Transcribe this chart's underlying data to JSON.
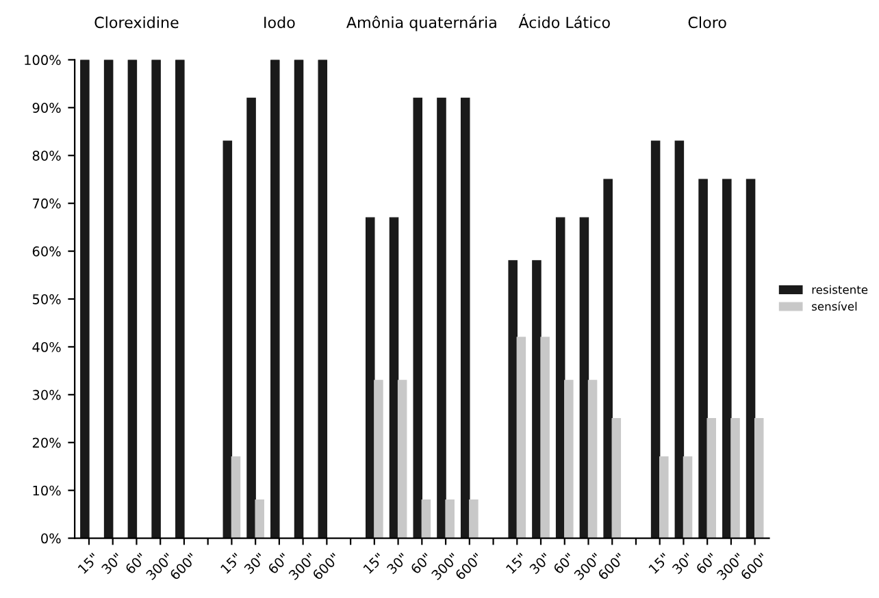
{
  "chart_data": {
    "type": "bar",
    "categories": [
      "15\"",
      "30\"",
      "60\"",
      "300\"",
      "600\"",
      null,
      "15\"",
      "30\"",
      "60\"",
      "300\"",
      "600\"",
      null,
      "15\"",
      "30\"",
      "60\"",
      "300\"",
      "600\"",
      null,
      "15\"",
      "30\"",
      "60\"",
      "300\"",
      "600\"",
      null,
      "15\"",
      "30\"",
      "60\"",
      "300\"",
      "600\""
    ],
    "series": [
      {
        "name": "resistente",
        "color": "#1a1a1a",
        "values": [
          100,
          100,
          100,
          100,
          100,
          null,
          83,
          92,
          100,
          100,
          100,
          null,
          67,
          67,
          92,
          92,
          92,
          null,
          58,
          58,
          67,
          67,
          75,
          null,
          83,
          83,
          75,
          75,
          75
        ]
      },
      {
        "name": "sensível",
        "color": "#c8c8c8",
        "values": [
          0,
          0,
          0,
          0,
          0,
          null,
          17,
          8,
          0,
          0,
          0,
          null,
          33,
          33,
          8,
          8,
          8,
          null,
          42,
          42,
          33,
          33,
          25,
          null,
          17,
          17,
          25,
          25,
          25
        ]
      }
    ],
    "annotations": [
      "Clorexidine",
      "Iodo",
      "Amônia quaternária",
      "Ácido Lático",
      "Cloro"
    ],
    "ylim": [
      0,
      100
    ],
    "yticks": [
      {
        "value": 0,
        "label": "0%"
      },
      {
        "value": 10,
        "label": "10%"
      },
      {
        "value": 20,
        "label": "20%"
      },
      {
        "value": 30,
        "label": "30%"
      },
      {
        "value": 40,
        "label": "40%"
      },
      {
        "value": 50,
        "label": "50%"
      },
      {
        "value": 60,
        "label": "60%"
      },
      {
        "value": 70,
        "label": "70%"
      },
      {
        "value": 80,
        "label": "80%"
      },
      {
        "value": 90,
        "label": "90%"
      },
      {
        "value": 100,
        "label": "100%"
      }
    ],
    "grid": false,
    "legend": "right"
  }
}
